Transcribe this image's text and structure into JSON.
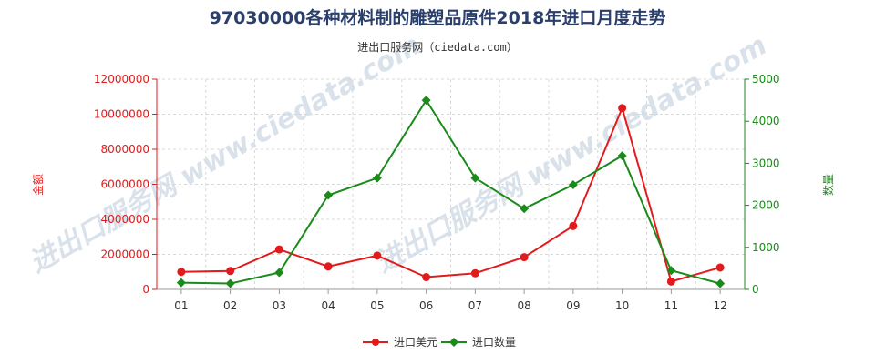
{
  "header": {
    "title": "97030000各种材料制的雕塑品原件2018年进口月度走势",
    "subtitle": "进出口服务网（ciedata.com）"
  },
  "chart_data": {
    "type": "line",
    "categories": [
      "01",
      "02",
      "03",
      "04",
      "05",
      "06",
      "07",
      "08",
      "09",
      "10",
      "11",
      "12"
    ],
    "y_left": {
      "label": "金额",
      "range": [
        0,
        12000000
      ],
      "ticks": [
        "0",
        "2000000",
        "4000000",
        "6000000",
        "8000000",
        "10000000",
        "12000000"
      ],
      "color": "#e31a1c"
    },
    "y_right": {
      "label": "数量",
      "range": [
        0,
        5000
      ],
      "ticks": [
        "0",
        "1000",
        "2000",
        "3000",
        "4000",
        "5000"
      ],
      "color": "#1a8a1a"
    },
    "series": [
      {
        "name": "进口美元",
        "axis": "left",
        "color": "#e31a1c",
        "marker": "circle",
        "values": [
          1000000,
          1050000,
          2280000,
          1310000,
          1930000,
          700000,
          920000,
          1840000,
          3620000,
          10350000,
          450000,
          1250000
        ]
      },
      {
        "name": "进口数量",
        "axis": "right",
        "color": "#1a8a1a",
        "marker": "diamond",
        "values": [
          160,
          140,
          400,
          2240,
          2650,
          4500,
          2650,
          1920,
          2490,
          3180,
          450,
          140
        ]
      }
    ],
    "grid": true,
    "legend_position": "bottom-center"
  }
}
